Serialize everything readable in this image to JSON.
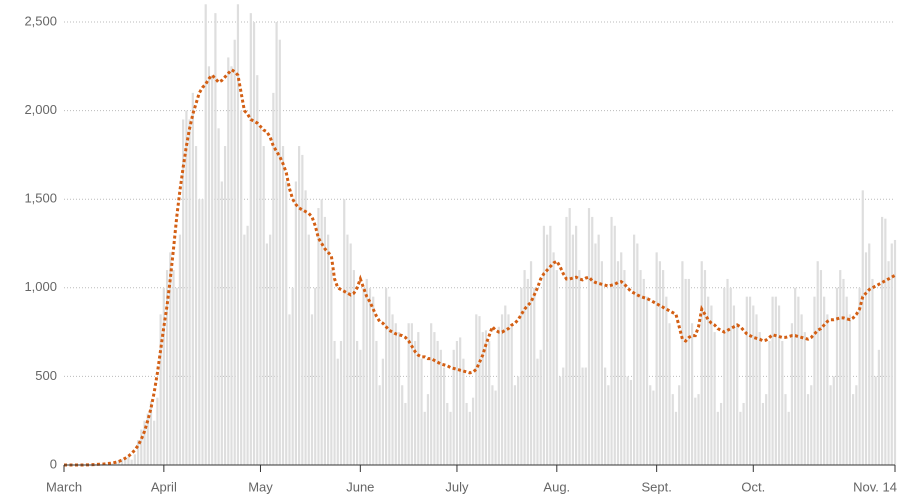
{
  "chart_data": {
    "type": "bar",
    "categories": [
      "March",
      null,
      null,
      null,
      null,
      null,
      null,
      null,
      null,
      null,
      null,
      null,
      null,
      null,
      null,
      null,
      null,
      null,
      null,
      null,
      null,
      null,
      null,
      null,
      null,
      null,
      null,
      null,
      null,
      null,
      null,
      "April",
      null,
      null,
      null,
      null,
      null,
      null,
      null,
      null,
      null,
      null,
      null,
      null,
      null,
      null,
      null,
      null,
      null,
      null,
      null,
      null,
      null,
      null,
      null,
      null,
      null,
      null,
      null,
      null,
      null,
      "May",
      null,
      null,
      null,
      null,
      null,
      null,
      null,
      null,
      null,
      null,
      null,
      null,
      null,
      null,
      null,
      null,
      null,
      null,
      null,
      null,
      null,
      null,
      null,
      null,
      null,
      null,
      null,
      null,
      null,
      null,
      "June",
      null,
      null,
      null,
      null,
      null,
      null,
      null,
      null,
      null,
      null,
      null,
      null,
      null,
      null,
      null,
      null,
      null,
      null,
      null,
      null,
      null,
      null,
      null,
      null,
      null,
      null,
      null,
      null,
      null,
      "July",
      null,
      null,
      null,
      null,
      null,
      null,
      null,
      null,
      null,
      null,
      null,
      null,
      null,
      null,
      null,
      null,
      null,
      null,
      null,
      null,
      null,
      null,
      null,
      null,
      null,
      null,
      null,
      null,
      null,
      null,
      "Aug.",
      null,
      null,
      null,
      null,
      null,
      null,
      null,
      null,
      null,
      null,
      null,
      null,
      null,
      null,
      null,
      null,
      null,
      null,
      null,
      null,
      null,
      null,
      null,
      null,
      null,
      null,
      null,
      null,
      null,
      null,
      "Sept.",
      null,
      null,
      null,
      null,
      null,
      null,
      null,
      null,
      null,
      null,
      null,
      null,
      null,
      null,
      null,
      null,
      null,
      null,
      null,
      null,
      null,
      null,
      null,
      null,
      null,
      null,
      null,
      null,
      null,
      "Oct.",
      null,
      null,
      null,
      null,
      null,
      null,
      null,
      null,
      null,
      null,
      null,
      null,
      null,
      null,
      null,
      null,
      null,
      null,
      null,
      null,
      null,
      null,
      null,
      null,
      null,
      null,
      null,
      null,
      null,
      null,
      null,
      null,
      null,
      null,
      null,
      null,
      null,
      null,
      null,
      null,
      null,
      null,
      null,
      "Nov. 14"
    ],
    "series": [
      {
        "type": "bar",
        "color": "#dedede",
        "values": [
          0,
          0,
          0,
          0,
          0,
          0,
          0,
          1,
          1,
          3,
          4,
          5,
          6,
          6,
          9,
          8,
          20,
          25,
          32,
          42,
          45,
          30,
          60,
          140,
          200,
          250,
          290,
          360,
          250,
          380,
          850,
          1000,
          1100,
          1200,
          1100,
          1000,
          1300,
          1950,
          2000,
          1950,
          2100,
          1800,
          1500,
          1500,
          2600,
          2250,
          2200,
          2550,
          1900,
          1600,
          1800,
          2300,
          2250,
          2400,
          2600,
          2000,
          1300,
          1350,
          2550,
          2500,
          2200,
          1900,
          1800,
          1250,
          1300,
          2100,
          2500,
          2400,
          1800,
          1600,
          850,
          1000,
          1600,
          1800,
          1750,
          1550,
          1300,
          850,
          1000,
          1450,
          1500,
          1400,
          1300,
          1100,
          700,
          600,
          700,
          1500,
          1300,
          1250,
          1100,
          700,
          650,
          1000,
          1050,
          1000,
          950,
          700,
          450,
          600,
          1000,
          950,
          850,
          800,
          750,
          450,
          350,
          800,
          800,
          700,
          750,
          600,
          300,
          400,
          800,
          750,
          700,
          650,
          550,
          350,
          300,
          650,
          700,
          720,
          600,
          350,
          300,
          380,
          850,
          840,
          750,
          760,
          700,
          450,
          420,
          780,
          850,
          900,
          850,
          780,
          450,
          500,
          1000,
          1100,
          1050,
          1150,
          1000,
          600,
          650,
          1350,
          1300,
          1350,
          1200,
          1100,
          500,
          550,
          1400,
          1450,
          1300,
          1350,
          1100,
          550,
          550,
          1450,
          1400,
          1250,
          1300,
          1150,
          550,
          450,
          1400,
          1350,
          1150,
          1200,
          1100,
          500,
          480,
          1300,
          1250,
          1100,
          1050,
          950,
          450,
          420,
          1200,
          1150,
          1100,
          950,
          800,
          400,
          300,
          450,
          1150,
          1050,
          1050,
          800,
          380,
          400,
          1150,
          1100,
          950,
          900,
          750,
          300,
          350,
          1000,
          1050,
          1000,
          900,
          800,
          300,
          350,
          950,
          950,
          900,
          850,
          750,
          350,
          400,
          700,
          950,
          950,
          900,
          700,
          400,
          300,
          800,
          1000,
          950,
          850,
          750,
          400,
          450,
          950,
          1150,
          1100,
          950,
          850,
          450,
          500,
          1000,
          1100,
          1050,
          950,
          850,
          400,
          450,
          1000,
          1550,
          1200,
          1250,
          1050,
          500,
          650,
          1400,
          1390,
          1150,
          1250,
          1270
        ]
      },
      {
        "type": "line",
        "color": "#d35f14",
        "values": [
          0,
          0,
          0,
          0,
          0,
          0,
          0,
          1,
          1,
          2,
          3,
          4,
          5,
          7,
          9,
          11,
          15,
          20,
          28,
          38,
          50,
          65,
          85,
          110,
          145,
          190,
          250,
          320,
          410,
          520,
          650,
          780,
          900,
          1050,
          1220,
          1400,
          1550,
          1680,
          1800,
          1900,
          1980,
          2040,
          2100,
          2130,
          2150,
          2180,
          2200,
          2180,
          2160,
          2170,
          2190,
          2210,
          2230,
          2220,
          2200,
          2100,
          2000,
          1980,
          1950,
          1940,
          1930,
          1910,
          1890,
          1880,
          1850,
          1800,
          1770,
          1740,
          1700,
          1650,
          1560,
          1500,
          1470,
          1450,
          1440,
          1430,
          1420,
          1400,
          1350,
          1280,
          1250,
          1220,
          1200,
          1180,
          1050,
          1000,
          990,
          980,
          970,
          960,
          970,
          1000,
          1050,
          1000,
          950,
          920,
          880,
          840,
          810,
          800,
          780,
          760,
          750,
          740,
          735,
          730,
          720,
          700,
          670,
          640,
          620,
          610,
          610,
          600,
          600,
          590,
          580,
          570,
          565,
          560,
          550,
          545,
          540,
          535,
          530,
          525,
          520,
          525,
          540,
          580,
          620,
          680,
          730,
          780,
          760,
          750,
          750,
          760,
          770,
          790,
          800,
          820,
          850,
          880,
          900,
          920,
          960,
          1000,
          1050,
          1080,
          1100,
          1120,
          1140,
          1150,
          1120,
          1080,
          1050,
          1050,
          1055,
          1060,
          1050,
          1045,
          1055,
          1060,
          1040,
          1030,
          1025,
          1020,
          1015,
          1010,
          1015,
          1020,
          1030,
          1035,
          1020,
          1000,
          980,
          970,
          960,
          950,
          945,
          940,
          930,
          920,
          910,
          900,
          890,
          880,
          870,
          860,
          850,
          780,
          710,
          700,
          720,
          730,
          730,
          780,
          880,
          850,
          820,
          800,
          790,
          770,
          760,
          750,
          760,
          770,
          780,
          790,
          780,
          760,
          740,
          730,
          720,
          715,
          710,
          700,
          705,
          720,
          735,
          730,
          725,
          720,
          720,
          725,
          730,
          730,
          725,
          720,
          715,
          710,
          720,
          740,
          760,
          770,
          790,
          810,
          820,
          820,
          825,
          830,
          830,
          825,
          820,
          830,
          850,
          880,
          950,
          970,
          990,
          1000,
          1010,
          1020,
          1030,
          1040,
          1050,
          1060,
          1070
        ]
      }
    ],
    "ylim": [
      0,
      2500
    ],
    "yticks": [
      0,
      500,
      {
        "value": 1000,
        "label": "1,000"
      },
      {
        "value": 1500,
        "label": "1,500"
      },
      {
        "value": 2000,
        "label": "2,000"
      },
      {
        "value": 2500,
        "label": "2,500"
      }
    ],
    "grid": true
  }
}
